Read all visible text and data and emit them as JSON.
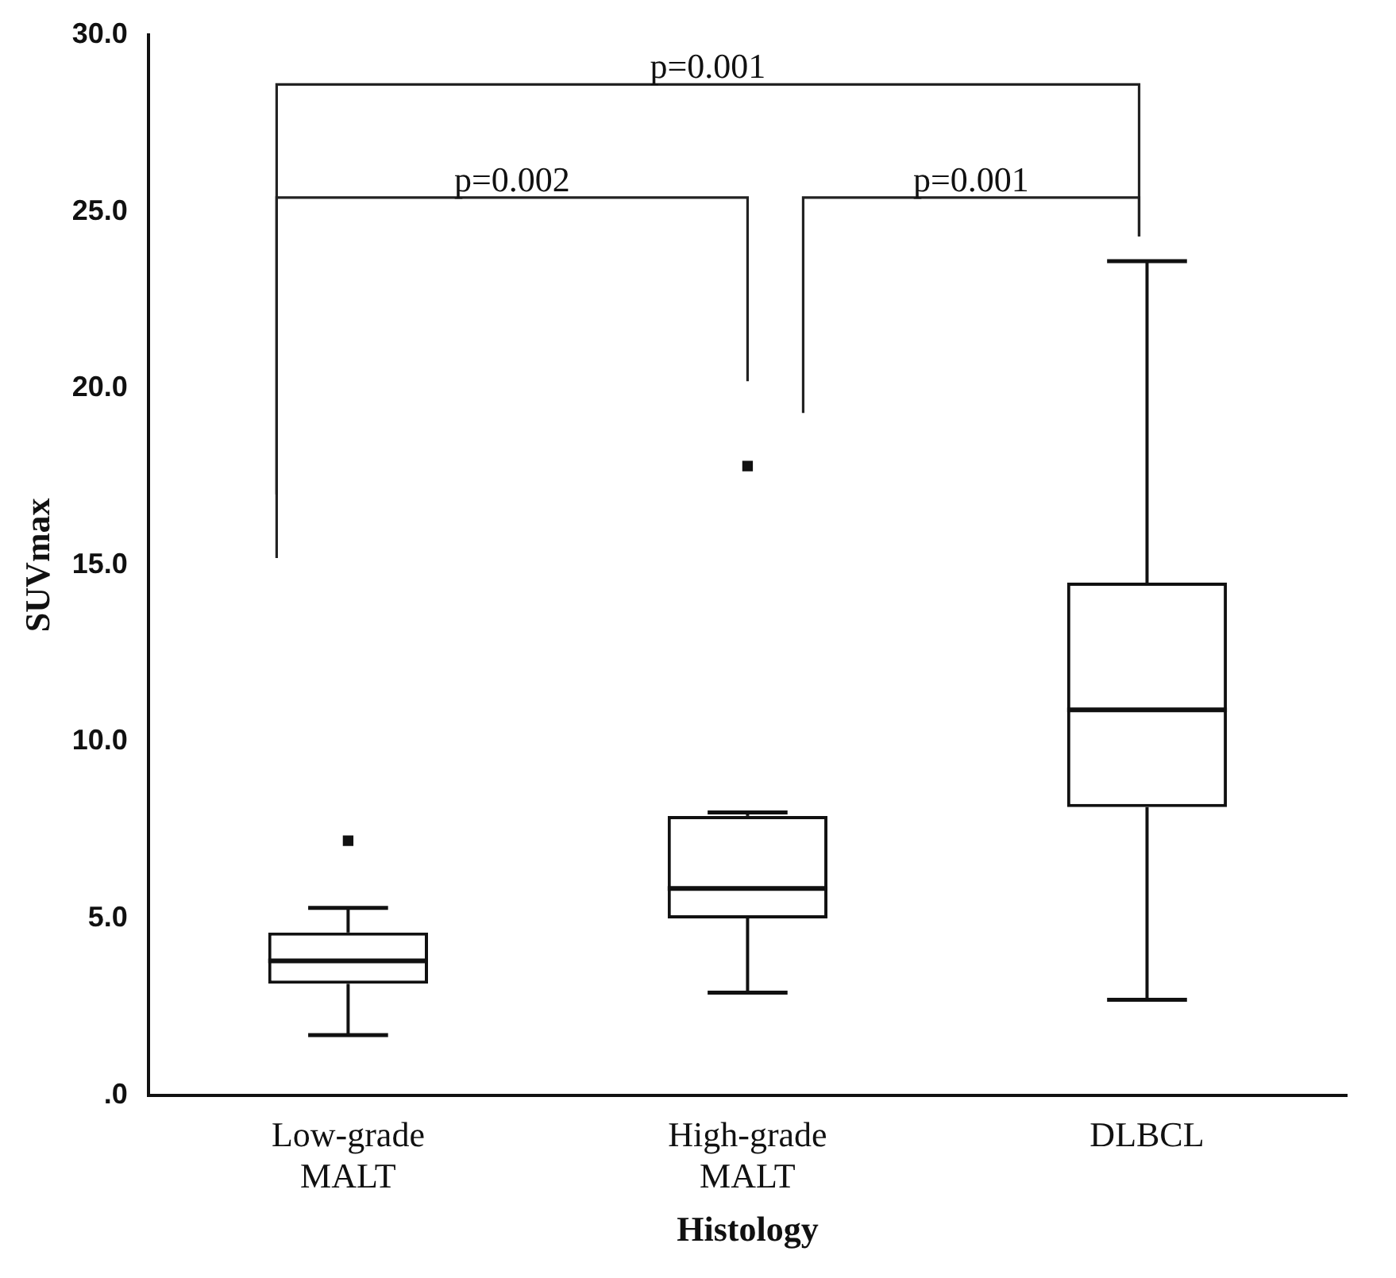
{
  "chart_data": {
    "type": "box",
    "xlabel": "Histology",
    "ylabel": "SUVmax",
    "categories": [
      "Low-grade MALT",
      "High-grade MALT",
      "DLBCL"
    ],
    "boxes": [
      {
        "low": 1.7,
        "q1": 3.15,
        "median": 3.8,
        "q3": 4.6,
        "high": 5.3,
        "outliers": [
          7.2
        ]
      },
      {
        "low": 2.9,
        "q1": 5.0,
        "median": 5.85,
        "q3": 7.9,
        "high": 8.0,
        "outliers": [
          17.8
        ]
      },
      {
        "low": 2.7,
        "q1": 8.15,
        "median": 10.9,
        "q3": 14.5,
        "high": 23.6
      }
    ],
    "ylim": [
      0,
      30
    ],
    "yticks": [
      {
        "value": 0,
        "label": ".0"
      },
      {
        "value": 5,
        "label": "5.0"
      },
      {
        "value": 10,
        "label": "10.0"
      },
      {
        "value": 15,
        "label": "15.0"
      },
      {
        "value": 20,
        "label": "20.0"
      },
      {
        "value": 25,
        "label": "25.0"
      },
      {
        "value": 30,
        "label": "30.0"
      }
    ],
    "annotations": [
      "p=0.001",
      "p=0.002",
      "p=0.001"
    ]
  }
}
